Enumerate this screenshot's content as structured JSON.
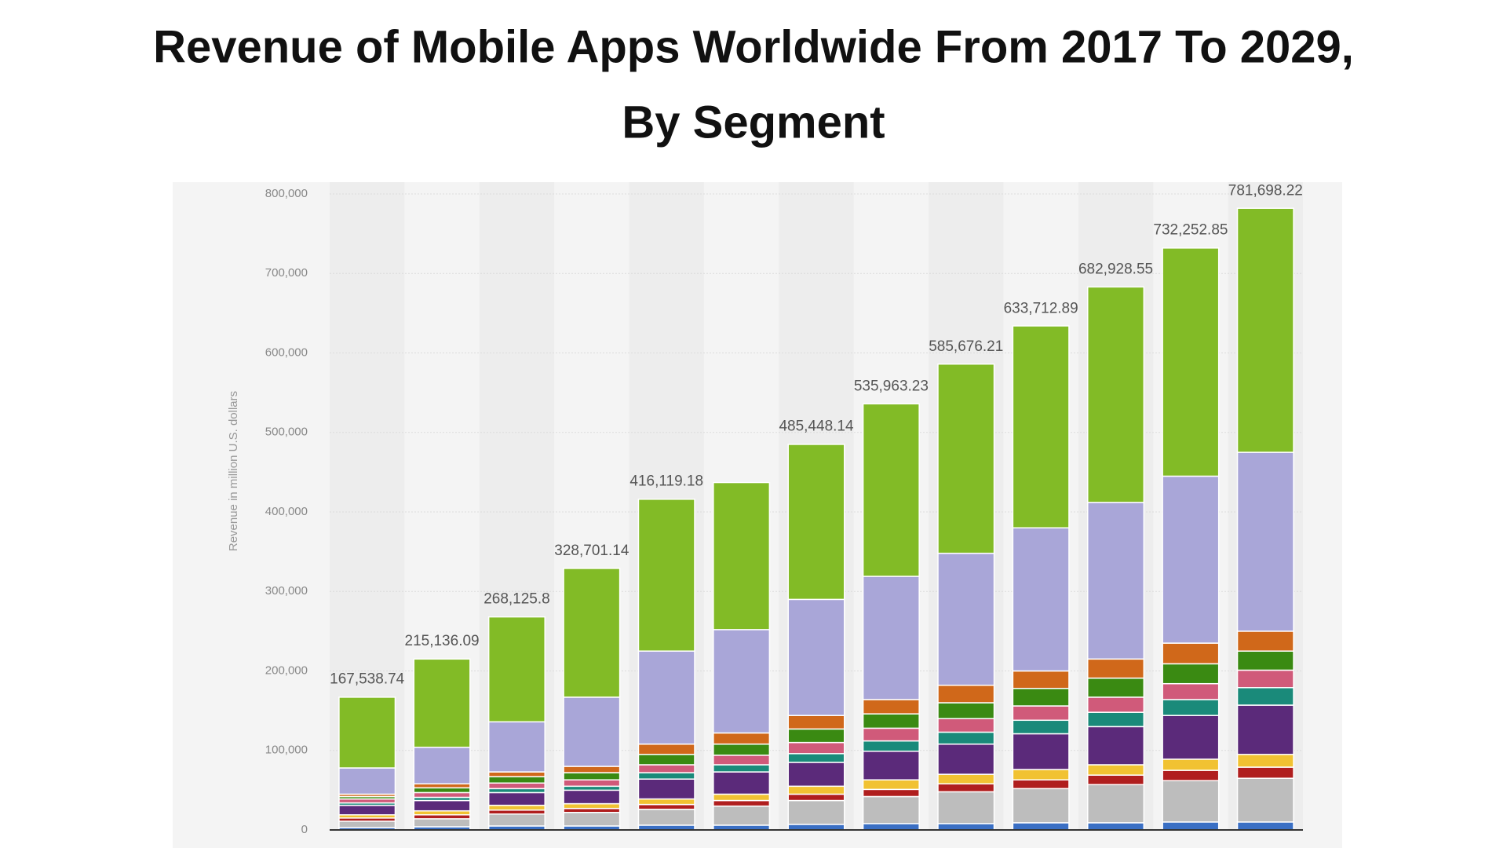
{
  "chart_data": {
    "type": "stacked_bar",
    "title": "Revenue of Mobile Apps Worldwide From 2017 To 2029,",
    "subtitle": "By Segment",
    "y_label": "Revenue in million U.S. dollars",
    "categories": [
      null,
      null,
      null,
      null,
      null,
      null,
      null,
      null,
      null,
      null,
      null,
      null,
      null
    ],
    "ylim": [
      0,
      800000
    ],
    "yticks": [
      0,
      {
        "value": 100000,
        "label": "100,000"
      },
      {
        "value": 200000,
        "label": "200,000"
      },
      {
        "value": 300000,
        "label": "300,000"
      },
      {
        "value": 400000,
        "label": "400,000"
      },
      {
        "value": 500000,
        "label": "500,000"
      },
      {
        "value": 600000,
        "label": "600,000"
      },
      {
        "value": 700000,
        "label": "700,000"
      },
      {
        "value": 800000,
        "label": "800,000"
      }
    ],
    "grid": true,
    "series": [
      {
        "color": "#3a6fc4",
        "values": [
          3000,
          4000,
          5000,
          5000,
          6000,
          6000,
          7000,
          8000,
          8000,
          9000,
          9000,
          10000,
          10000
        ]
      },
      {
        "color": "#bdbdbd",
        "values": [
          8000,
          10000,
          15000,
          17000,
          20000,
          24000,
          30000,
          34000,
          40000,
          43000,
          48000,
          52000,
          55000
        ]
      },
      {
        "color": "#b01e1e",
        "values": [
          4000,
          5000,
          5000,
          5000,
          6000,
          7000,
          8000,
          9000,
          10000,
          11000,
          12000,
          13000,
          14000
        ]
      },
      {
        "color": "#f1c232",
        "values": [
          4000,
          5000,
          6000,
          6000,
          7000,
          8000,
          10000,
          12000,
          12000,
          13000,
          13000,
          14000,
          16000
        ]
      },
      {
        "color": "#5b2a7a",
        "values": [
          12000,
          13000,
          16000,
          17000,
          25000,
          28000,
          30000,
          36000,
          38000,
          45000,
          48000,
          55000,
          62000
        ]
      },
      {
        "color": "#1a8a7a",
        "values": [
          3000,
          4000,
          5000,
          5000,
          8000,
          9000,
          11000,
          13000,
          15000,
          17000,
          18000,
          20000,
          22000
        ]
      },
      {
        "color": "#d05a7a",
        "values": [
          5000,
          6000,
          7000,
          8000,
          10000,
          12000,
          14000,
          16000,
          17000,
          18000,
          19000,
          20000,
          22000
        ]
      },
      {
        "color": "#3a8a12",
        "values": [
          3000,
          6000,
          8000,
          9000,
          13000,
          14000,
          17000,
          18000,
          20000,
          22000,
          24000,
          25000,
          24000
        ]
      },
      {
        "color": "#d0681a",
        "values": [
          3000,
          5000,
          6000,
          8000,
          13000,
          14000,
          17000,
          18000,
          22000,
          22000,
          24000,
          26000,
          25000
        ]
      },
      {
        "color": "#a9a6d8",
        "values": [
          33000,
          46000,
          63000,
          87000,
          117000,
          130000,
          146000,
          155000,
          166000,
          180000,
          197000,
          210000,
          225000
        ]
      },
      {
        "color": "#82bb26",
        "values": [
          89000,
          111000,
          132000,
          162000,
          191000,
          185000,
          195000,
          217000,
          238000,
          254000,
          271000,
          287000,
          307000
        ]
      }
    ],
    "totals": [
      167538.74,
      215136.09,
      268125.8,
      328701.14,
      416119.18,
      null,
      485448.14,
      535963.23,
      585676.21,
      633712.89,
      682928.55,
      732252.85,
      781698.22
    ],
    "total_labels": [
      "167,538.74",
      "215,136.09",
      "268,125.8",
      "328,701.14",
      "416,119.18",
      null,
      "485,448.14",
      "535,963.23",
      "585,676.21",
      "633,712.89",
      "682,928.55",
      "732,252.85",
      "781,698.22"
    ]
  }
}
